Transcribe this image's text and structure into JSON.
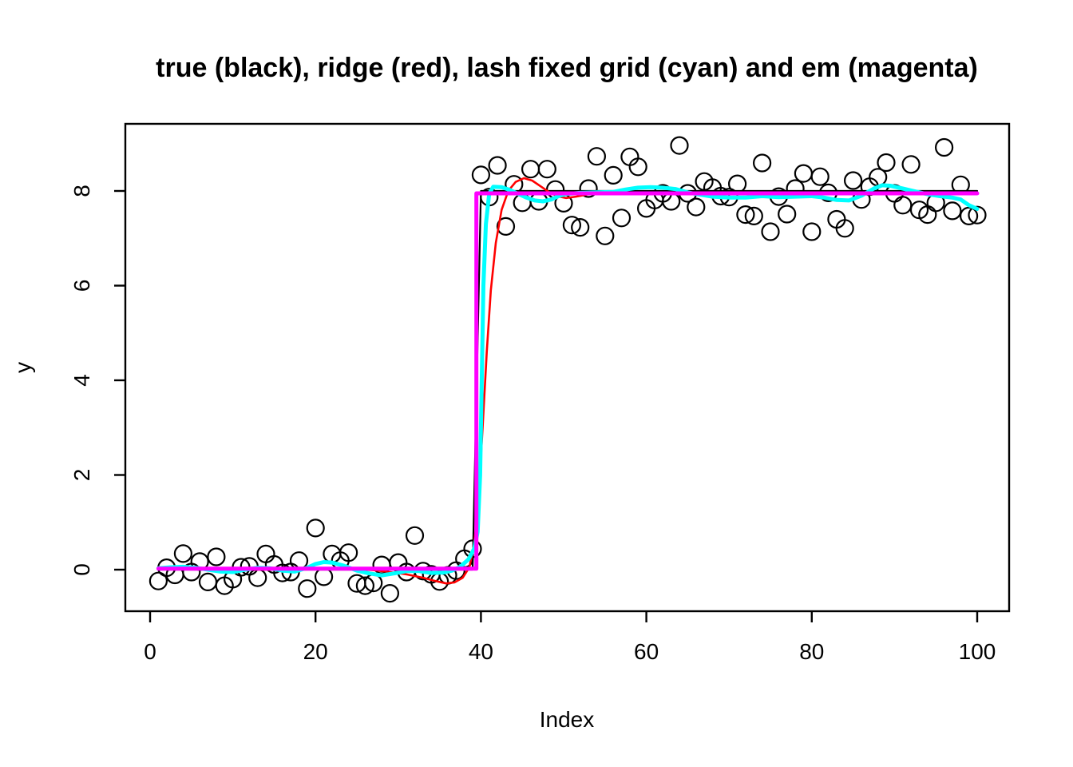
{
  "chart_data": {
    "type": "scatter",
    "title": "true (black), ridge (red), lash fixed grid (cyan) and em (magenta)",
    "xlabel": "Index",
    "ylabel": "y",
    "xlim": [
      0,
      100
    ],
    "ylim": [
      -0.6,
      9.2
    ],
    "x_ticks": [
      0,
      20,
      40,
      60,
      80,
      100
    ],
    "y_ticks": [
      0,
      2,
      4,
      6,
      8
    ],
    "grid": false,
    "legend": "encoded in title: true=black, ridge=red, lash fixed grid=cyan, em=magenta",
    "scatter": {
      "name": "observations",
      "marker": "open-circle",
      "color": "#000000",
      "x_start": 1,
      "x_step": 1,
      "y": [
        -0.24,
        0.04,
        -0.11,
        0.34,
        -0.05,
        0.17,
        -0.26,
        0.27,
        -0.34,
        -0.2,
        0.05,
        0.07,
        -0.17,
        0.33,
        0.11,
        -0.07,
        -0.05,
        0.19,
        -0.4,
        0.88,
        -0.15,
        0.33,
        0.19,
        0.36,
        -0.29,
        -0.34,
        -0.28,
        0.1,
        -0.5,
        0.15,
        -0.05,
        0.72,
        -0.03,
        -0.1,
        -0.25,
        -0.12,
        -0.02,
        0.23,
        0.44,
        8.34,
        7.87,
        8.54,
        7.25,
        8.14,
        7.75,
        8.46,
        7.78,
        8.46,
        8.03,
        7.74,
        7.28,
        7.23,
        8.05,
        8.73,
        7.05,
        8.33,
        7.43,
        8.72,
        8.51,
        7.63,
        7.81,
        7.95,
        7.78,
        8.96,
        7.95,
        7.66,
        8.2,
        8.07,
        7.89,
        7.87,
        8.15,
        7.5,
        7.47,
        8.59,
        7.14,
        7.88,
        7.51,
        8.05,
        8.37,
        7.14,
        8.3,
        7.96,
        7.4,
        7.21,
        8.22,
        7.82,
        8.09,
        8.29,
        8.6,
        7.95,
        7.7,
        8.56,
        7.6,
        7.5,
        7.75,
        8.92,
        7.58,
        8.13,
        7.47,
        7.49
      ]
    },
    "series": [
      {
        "name": "true",
        "color": "#000000",
        "points": [
          [
            1,
            0
          ],
          [
            39,
            0
          ],
          [
            40,
            8
          ],
          [
            100,
            8
          ]
        ]
      },
      {
        "name": "ridge",
        "color": "#FF0000",
        "points": [
          [
            1,
            0.01
          ],
          [
            6,
            0.01
          ],
          [
            12,
            0.0
          ],
          [
            18,
            0.0
          ],
          [
            22,
            0.02
          ],
          [
            25,
            0.01
          ],
          [
            27,
            -0.01
          ],
          [
            29,
            -0.05
          ],
          [
            31,
            -0.1
          ],
          [
            33,
            -0.17
          ],
          [
            34.5,
            -0.24
          ],
          [
            35.8,
            -0.29
          ],
          [
            36.8,
            -0.27
          ],
          [
            37.8,
            -0.17
          ],
          [
            38.6,
            0.05
          ],
          [
            39.2,
            0.55
          ],
          [
            39.7,
            1.5
          ],
          [
            40.2,
            3.0
          ],
          [
            40.7,
            4.6
          ],
          [
            41.2,
            5.9
          ],
          [
            41.8,
            6.9
          ],
          [
            42.5,
            7.6
          ],
          [
            43.3,
            8.0
          ],
          [
            44.2,
            8.19
          ],
          [
            45.2,
            8.27
          ],
          [
            46.2,
            8.22
          ],
          [
            47.2,
            8.1
          ],
          [
            48.2,
            7.98
          ],
          [
            49.2,
            7.89
          ],
          [
            50.3,
            7.85
          ],
          [
            51.5,
            7.88
          ],
          [
            53,
            7.93
          ],
          [
            55,
            7.96
          ],
          [
            58,
            7.96
          ],
          [
            62,
            7.95
          ],
          [
            66,
            7.94
          ],
          [
            70,
            7.94
          ],
          [
            75,
            7.94
          ],
          [
            80,
            7.94
          ],
          [
            85,
            7.94
          ],
          [
            90,
            7.94
          ],
          [
            95,
            7.94
          ],
          [
            100,
            7.94
          ]
        ]
      },
      {
        "name": "lash fixed grid",
        "color": "#00FFFF",
        "points": [
          [
            1,
            0.03
          ],
          [
            2.5,
            0.05
          ],
          [
            4,
            0.06
          ],
          [
            5.5,
            0.04
          ],
          [
            7,
            0.0
          ],
          [
            8.5,
            -0.04
          ],
          [
            10,
            -0.05
          ],
          [
            11.5,
            0.0
          ],
          [
            13,
            0.04
          ],
          [
            14.5,
            0.03
          ],
          [
            16,
            -0.02
          ],
          [
            17.5,
            -0.04
          ],
          [
            19,
            0.04
          ],
          [
            20,
            0.12
          ],
          [
            21,
            0.16
          ],
          [
            22,
            0.15
          ],
          [
            23.5,
            0.08
          ],
          [
            25,
            -0.02
          ],
          [
            26.5,
            -0.08
          ],
          [
            28,
            -0.12
          ],
          [
            29.5,
            -0.08
          ],
          [
            31,
            -0.03
          ],
          [
            32.5,
            -0.03
          ],
          [
            34,
            -0.07
          ],
          [
            35.5,
            -0.06
          ],
          [
            36.5,
            -0.02
          ],
          [
            37.5,
            0.06
          ],
          [
            38.5,
            0.22
          ],
          [
            39.2,
            0.45
          ],
          [
            39.6,
            0.8
          ],
          [
            39.9,
            2.0
          ],
          [
            40.1,
            4.0
          ],
          [
            40.3,
            6.0
          ],
          [
            40.6,
            7.3
          ],
          [
            41,
            7.95
          ],
          [
            41.5,
            8.09
          ],
          [
            42.5,
            8.08
          ],
          [
            43.5,
            8.02
          ],
          [
            44.5,
            7.94
          ],
          [
            45.5,
            7.86
          ],
          [
            46.5,
            7.8
          ],
          [
            47.5,
            7.78
          ],
          [
            48.5,
            7.82
          ],
          [
            49.5,
            7.9
          ],
          [
            50.5,
            7.94
          ],
          [
            52,
            7.96
          ],
          [
            54,
            7.97
          ],
          [
            56,
            7.98
          ],
          [
            57.5,
            8.03
          ],
          [
            59,
            8.07
          ],
          [
            60.5,
            8.08
          ],
          [
            62,
            8.07
          ],
          [
            63.5,
            8.04
          ],
          [
            65,
            7.97
          ],
          [
            66.5,
            7.92
          ],
          [
            68,
            7.88
          ],
          [
            70,
            7.86
          ],
          [
            72,
            7.86
          ],
          [
            74,
            7.89
          ],
          [
            76,
            7.87
          ],
          [
            78,
            7.88
          ],
          [
            80,
            7.89
          ],
          [
            81.5,
            7.86
          ],
          [
            83,
            7.81
          ],
          [
            84.5,
            7.8
          ],
          [
            86,
            7.9
          ],
          [
            87.5,
            8.05
          ],
          [
            88.5,
            8.12
          ],
          [
            89.5,
            8.11
          ],
          [
            91,
            8.05
          ],
          [
            92.5,
            7.99
          ],
          [
            94,
            7.93
          ],
          [
            95.5,
            7.89
          ],
          [
            97,
            7.86
          ],
          [
            98,
            7.82
          ],
          [
            99,
            7.7
          ],
          [
            100,
            7.62
          ]
        ]
      },
      {
        "name": "em",
        "color": "#FF00FF",
        "points": [
          [
            1,
            0.02
          ],
          [
            39.45,
            0.02
          ],
          [
            39.45,
            7.95
          ],
          [
            100,
            7.95
          ]
        ]
      }
    ]
  }
}
